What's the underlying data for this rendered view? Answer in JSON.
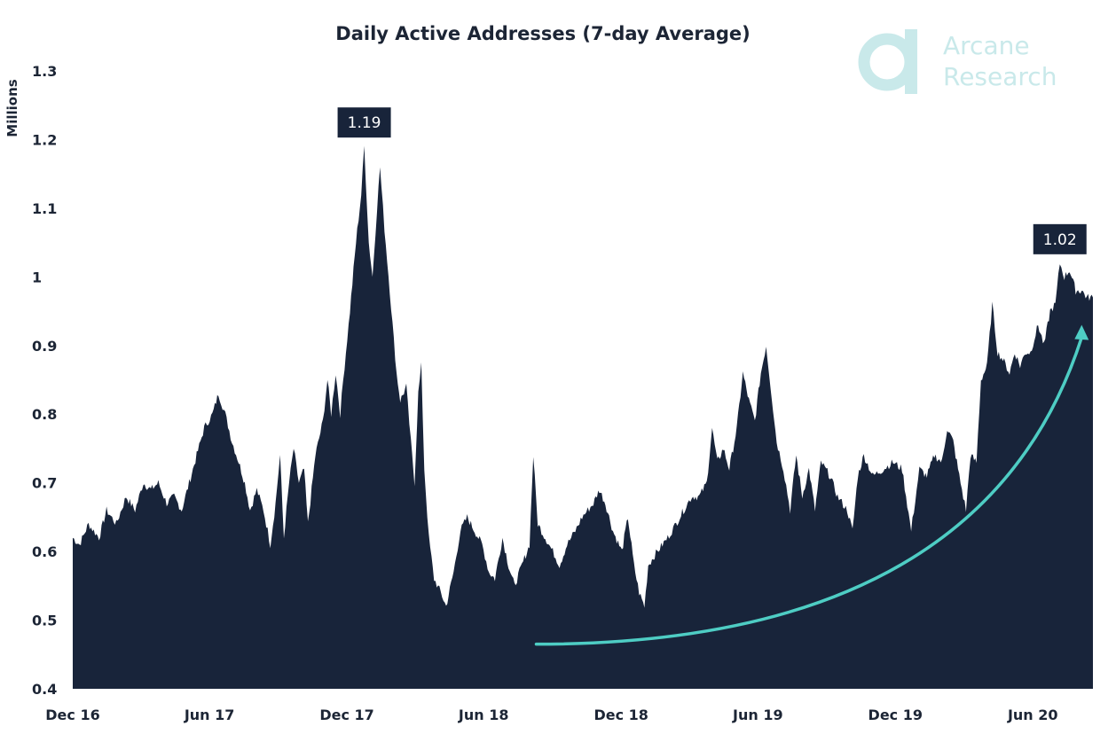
{
  "chart_data": {
    "type": "area",
    "title": "Daily Active Addresses (7-day Average)",
    "ylabel": "Millions",
    "xlabel": "",
    "ylim": [
      0.4,
      1.3
    ],
    "yticks": [
      {
        "value": 0.4,
        "label": "0.4"
      },
      {
        "value": 0.5,
        "label": "0.5"
      },
      {
        "value": 0.6,
        "label": "0.6"
      },
      {
        "value": 0.7,
        "label": "0.7"
      },
      {
        "value": 0.8,
        "label": "0.8"
      },
      {
        "value": 0.9,
        "label": "0.9"
      },
      {
        "value": 1.0,
        "label": "1"
      },
      {
        "value": 1.1,
        "label": "1.1"
      },
      {
        "value": 1.2,
        "label": "1.2"
      },
      {
        "value": 1.3,
        "label": "1.3"
      }
    ],
    "xlim": [
      "2016-12-01",
      "2020-08-20"
    ],
    "xticks": [
      {
        "date": "2016-12-01",
        "label": "Dec 16"
      },
      {
        "date": "2017-06-01",
        "label": "Jun 17"
      },
      {
        "date": "2017-12-01",
        "label": "Dec 17"
      },
      {
        "date": "2018-06-01",
        "label": "Jun 18"
      },
      {
        "date": "2018-12-01",
        "label": "Dec 18"
      },
      {
        "date": "2019-06-01",
        "label": "Jun 19"
      },
      {
        "date": "2019-12-01",
        "label": "Dec 19"
      },
      {
        "date": "2020-06-01",
        "label": "Jun 20"
      }
    ],
    "grid": false,
    "legend": "none",
    "series": [
      {
        "color": "#18243a",
        "points": [
          [
            "2016-12-01",
            0.62
          ],
          [
            "2016-12-10",
            0.61
          ],
          [
            "2016-12-22",
            0.64
          ],
          [
            "2017-01-05",
            0.62
          ],
          [
            "2017-01-15",
            0.66
          ],
          [
            "2017-01-28",
            0.64
          ],
          [
            "2017-02-10",
            0.68
          ],
          [
            "2017-02-22",
            0.66
          ],
          [
            "2017-03-05",
            0.7
          ],
          [
            "2017-03-15",
            0.69
          ],
          [
            "2017-03-25",
            0.7
          ],
          [
            "2017-04-05",
            0.67
          ],
          [
            "2017-04-15",
            0.68
          ],
          [
            "2017-04-25",
            0.66
          ],
          [
            "2017-05-05",
            0.7
          ],
          [
            "2017-05-15",
            0.74
          ],
          [
            "2017-05-25",
            0.78
          ],
          [
            "2017-06-05",
            0.8
          ],
          [
            "2017-06-13",
            0.83
          ],
          [
            "2017-06-22",
            0.8
          ],
          [
            "2017-07-01",
            0.76
          ],
          [
            "2017-07-10",
            0.73
          ],
          [
            "2017-07-18",
            0.7
          ],
          [
            "2017-07-25",
            0.66
          ],
          [
            "2017-08-03",
            0.69
          ],
          [
            "2017-08-12",
            0.66
          ],
          [
            "2017-08-21",
            0.61
          ],
          [
            "2017-08-28",
            0.67
          ],
          [
            "2017-09-03",
            0.74
          ],
          [
            "2017-09-08",
            0.62
          ],
          [
            "2017-09-15",
            0.7
          ],
          [
            "2017-09-21",
            0.75
          ],
          [
            "2017-09-28",
            0.7
          ],
          [
            "2017-10-05",
            0.72
          ],
          [
            "2017-10-10",
            0.64
          ],
          [
            "2017-10-20",
            0.74
          ],
          [
            "2017-10-30",
            0.79
          ],
          [
            "2017-11-05",
            0.85
          ],
          [
            "2017-11-10",
            0.8
          ],
          [
            "2017-11-16",
            0.86
          ],
          [
            "2017-11-22",
            0.8
          ],
          [
            "2017-11-26",
            0.85
          ],
          [
            "2017-12-05",
            0.95
          ],
          [
            "2017-12-13",
            1.05
          ],
          [
            "2017-12-20",
            1.12
          ],
          [
            "2017-12-24",
            1.19
          ],
          [
            "2017-12-30",
            1.05
          ],
          [
            "2018-01-04",
            1.0
          ],
          [
            "2018-01-10",
            1.1
          ],
          [
            "2018-01-14",
            1.16
          ],
          [
            "2018-01-20",
            1.07
          ],
          [
            "2018-01-27",
            0.98
          ],
          [
            "2018-02-05",
            0.86
          ],
          [
            "2018-02-10",
            0.82
          ],
          [
            "2018-02-18",
            0.84
          ],
          [
            "2018-02-24",
            0.76
          ],
          [
            "2018-03-01",
            0.7
          ],
          [
            "2018-03-06",
            0.83
          ],
          [
            "2018-03-10",
            0.87
          ],
          [
            "2018-03-14",
            0.72
          ],
          [
            "2018-03-20",
            0.62
          ],
          [
            "2018-03-27",
            0.56
          ],
          [
            "2018-04-05",
            0.54
          ],
          [
            "2018-04-12",
            0.52
          ],
          [
            "2018-04-22",
            0.57
          ],
          [
            "2018-05-01",
            0.63
          ],
          [
            "2018-05-10",
            0.65
          ],
          [
            "2018-05-20",
            0.63
          ],
          [
            "2018-05-30",
            0.61
          ],
          [
            "2018-06-08",
            0.57
          ],
          [
            "2018-06-16",
            0.56
          ],
          [
            "2018-06-26",
            0.62
          ],
          [
            "2018-07-04",
            0.58
          ],
          [
            "2018-07-12",
            0.55
          ],
          [
            "2018-07-22",
            0.58
          ],
          [
            "2018-08-01",
            0.61
          ],
          [
            "2018-08-06",
            0.74
          ],
          [
            "2018-08-12",
            0.64
          ],
          [
            "2018-08-22",
            0.62
          ],
          [
            "2018-09-01",
            0.6
          ],
          [
            "2018-09-10",
            0.58
          ],
          [
            "2018-09-20",
            0.61
          ],
          [
            "2018-10-01",
            0.63
          ],
          [
            "2018-10-10",
            0.65
          ],
          [
            "2018-10-25",
            0.67
          ],
          [
            "2018-11-02",
            0.69
          ],
          [
            "2018-11-10",
            0.67
          ],
          [
            "2018-11-20",
            0.63
          ],
          [
            "2018-12-02",
            0.6
          ],
          [
            "2018-12-10",
            0.65
          ],
          [
            "2018-12-18",
            0.58
          ],
          [
            "2018-12-25",
            0.54
          ],
          [
            "2019-01-01",
            0.52
          ],
          [
            "2019-01-06",
            0.58
          ],
          [
            "2019-01-18",
            0.6
          ],
          [
            "2019-02-01",
            0.62
          ],
          [
            "2019-02-12",
            0.64
          ],
          [
            "2019-02-22",
            0.66
          ],
          [
            "2019-03-05",
            0.68
          ],
          [
            "2019-03-15",
            0.68
          ],
          [
            "2019-03-25",
            0.7
          ],
          [
            "2019-04-01",
            0.78
          ],
          [
            "2019-04-08",
            0.73
          ],
          [
            "2019-04-16",
            0.75
          ],
          [
            "2019-04-24",
            0.72
          ],
          [
            "2019-05-04",
            0.78
          ],
          [
            "2019-05-12",
            0.86
          ],
          [
            "2019-05-20",
            0.82
          ],
          [
            "2019-05-28",
            0.79
          ],
          [
            "2019-06-05",
            0.86
          ],
          [
            "2019-06-12",
            0.9
          ],
          [
            "2019-06-18",
            0.84
          ],
          [
            "2019-06-26",
            0.76
          ],
          [
            "2019-07-05",
            0.72
          ],
          [
            "2019-07-14",
            0.66
          ],
          [
            "2019-07-22",
            0.74
          ],
          [
            "2019-07-30",
            0.68
          ],
          [
            "2019-08-08",
            0.72
          ],
          [
            "2019-08-16",
            0.66
          ],
          [
            "2019-08-24",
            0.73
          ],
          [
            "2019-09-05",
            0.71
          ],
          [
            "2019-09-15",
            0.68
          ],
          [
            "2019-09-28",
            0.66
          ],
          [
            "2019-10-05",
            0.63
          ],
          [
            "2019-10-12",
            0.71
          ],
          [
            "2019-10-20",
            0.74
          ],
          [
            "2019-11-01",
            0.71
          ],
          [
            "2019-11-15",
            0.72
          ],
          [
            "2019-11-28",
            0.73
          ],
          [
            "2019-12-10",
            0.72
          ],
          [
            "2019-12-22",
            0.63
          ],
          [
            "2020-01-02",
            0.72
          ],
          [
            "2020-01-12",
            0.71
          ],
          [
            "2020-01-22",
            0.74
          ],
          [
            "2020-02-01",
            0.73
          ],
          [
            "2020-02-08",
            0.78
          ],
          [
            "2020-02-16",
            0.76
          ],
          [
            "2020-02-24",
            0.71
          ],
          [
            "2020-03-04",
            0.66
          ],
          [
            "2020-03-10",
            0.74
          ],
          [
            "2020-03-18",
            0.73
          ],
          [
            "2020-03-24",
            0.85
          ],
          [
            "2020-04-01",
            0.87
          ],
          [
            "2020-04-08",
            0.96
          ],
          [
            "2020-04-15",
            0.89
          ],
          [
            "2020-04-22",
            0.88
          ],
          [
            "2020-05-01",
            0.86
          ],
          [
            "2020-05-08",
            0.89
          ],
          [
            "2020-05-15",
            0.87
          ],
          [
            "2020-05-22",
            0.89
          ],
          [
            "2020-05-29",
            0.89
          ],
          [
            "2020-06-08",
            0.93
          ],
          [
            "2020-06-16",
            0.9
          ],
          [
            "2020-06-24",
            0.95
          ],
          [
            "2020-07-01",
            0.96
          ],
          [
            "2020-07-07",
            1.02
          ],
          [
            "2020-07-13",
            1.0
          ],
          [
            "2020-07-20",
            1.01
          ],
          [
            "2020-07-28",
            0.98
          ],
          [
            "2020-08-05",
            0.98
          ],
          [
            "2020-08-12",
            0.97
          ],
          [
            "2020-08-20",
            0.97
          ]
        ]
      }
    ],
    "annotations": [
      {
        "label": "1.19",
        "date": "2017-12-24",
        "value": 1.19
      },
      {
        "label": "1.02",
        "date": "2020-07-07",
        "value": 1.02
      }
    ],
    "trend_arrow": {
      "color": "#4ecdc4",
      "from": {
        "date": "2018-08-10",
        "value": 0.465
      },
      "to": {
        "date": "2020-08-05",
        "value": 0.93
      }
    }
  },
  "branding": {
    "logo_icon": "arcane-research-logo-icon",
    "line1": "Arcane",
    "line2": "Research",
    "color": "#c9e9ea"
  }
}
